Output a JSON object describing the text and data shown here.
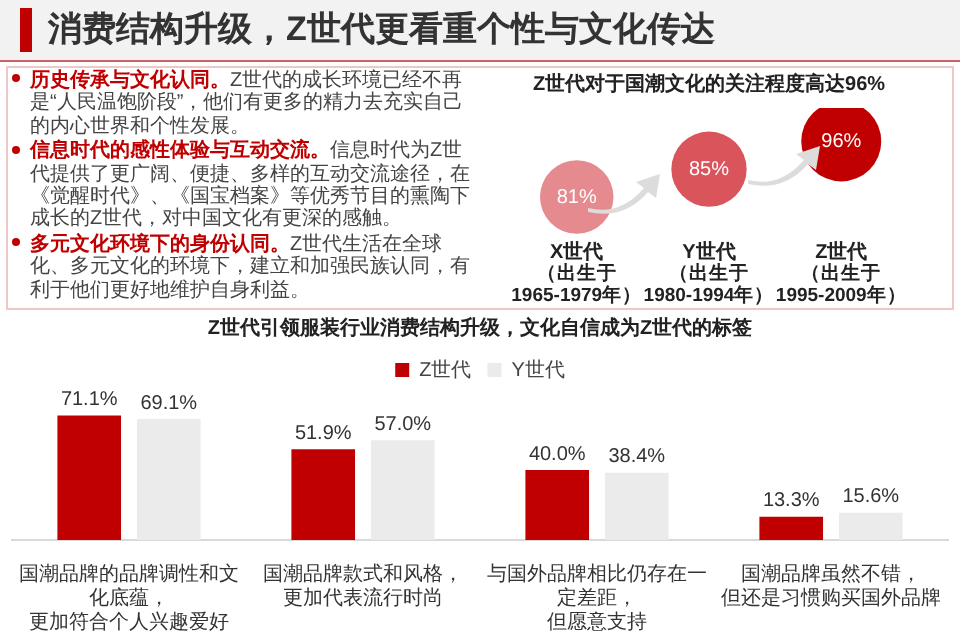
{
  "chart_data": [
    {
      "type": "other",
      "title": "消费结构升级，Z世代更看重个性与文化传达",
      "annotations": [
        "历史传承与文化认同。Z世代的成长环境已经不再是“人民温饱阶段”，他们有更多的精力去充实自己的内心世界和个性发展。",
        "信息时代的感性体验与互动交流。信息时代为Z世代提供了更广阔、便捷、多样的互动交流途径，在《觉醒时代》、《国宝档案》等优秀节目的熏陶下成长的Z世代，对中国文化有更深的感触。",
        "多元文化环境下的身份认同。Z世代生活在全球化、多元文化的环境下，建立和加强民族认同，有利于他们更好地维护自身利益。"
      ]
    },
    {
      "type": "other",
      "title": "Z世代对于国潮文化的关注程度高达96%",
      "categories": [
        "X世代",
        "Y世代",
        "Z世代"
      ],
      "values": [
        81,
        85,
        96
      ],
      "value_labels": [
        "81%",
        "85%",
        "96%"
      ],
      "colors": [
        "#e58a8f",
        "#d9545b",
        "#c00000"
      ],
      "annotations": [
        {
          "text": "（出生于1965-1979年）",
          "x": "X世代"
        },
        {
          "text": "（出生于1980-1994年）",
          "x": "Y世代"
        },
        {
          "text": "（出生于1995-2009年）",
          "x": "Z世代"
        }
      ]
    },
    {
      "type": "bar",
      "title": "Z世代引领服装行业消费结构升级，文化自信成为Z世代的标签",
      "categories": [
        "国潮品牌的品牌调性和文化底蕴，更加符合个人兴趣爱好",
        "国潮品牌款式和风格，更加代表流行时尚",
        "与国外品牌相比仍存在一定差距，但愿意支持",
        "国潮品牌虽然不错，但还是习惯购买国外品牌"
      ],
      "legend": "top",
      "series": [
        {
          "name": "Z世代",
          "color": "#c00000",
          "values": [
            71.1,
            51.9,
            40.0,
            13.3
          ],
          "value_labels": [
            "71.1%",
            "51.9%",
            "40.0%",
            "13.3%"
          ]
        },
        {
          "name": "Y世代",
          "color": "#ebebeb",
          "values": [
            69.1,
            57.0,
            38.4,
            15.6
          ],
          "value_labels": [
            "69.1%",
            "57.0%",
            "38.4%",
            "15.6%"
          ]
        }
      ]
    }
  ]
}
